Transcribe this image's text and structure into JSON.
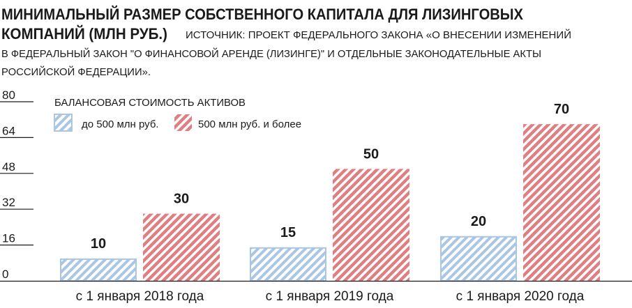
{
  "header": {
    "title_line1": "МИНИМАЛЬНЫЙ РАЗМЕР СОБСТВЕННОГО КАПИТАЛА ДЛЯ ЛИЗИНГОВЫХ",
    "title_line2": "КОМПАНИЙ (МЛН РУБ.)",
    "source_line1": "ИСТОЧНИК: ПРОЕКТ ФЕДЕРАЛЬНОГО ЗАКОНА «О ВНЕСЕНИИ ИЗМЕНЕНИЙ",
    "source_line2": "В ФЕДЕРАЛЬНЫЙ ЗАКОН \"О ФИНАНСОВОЙ АРЕНДЕ (ЛИЗИНГЕ)\" И ОТДЕЛЬНЫЕ ЗАКОНОДАТЕЛЬНЫЕ АКТЫ",
    "source_line3": "РОССИЙСКОЙ ФЕДЕРАЦИИ»."
  },
  "chart_data": {
    "type": "bar",
    "title": "МИНИМАЛЬНЫЙ РАЗМЕР СОБСТВЕННОГО КАПИТАЛА ДЛЯ ЛИЗИНГОВЫХ КОМПАНИЙ (МЛН РУБ.)",
    "legend_title": "БАЛАНСОВАЯ СТОИМОСТЬ АКТИВОВ",
    "legend_placement": "top-left",
    "categories": [
      "с 1 января 2018 года",
      "с 1 января 2019 года",
      "с 1 января 2020 года"
    ],
    "series": [
      {
        "name": "до 500 млн руб.",
        "values": [
          10,
          15,
          20
        ],
        "color": "#a9c6e3",
        "pattern": "hatched"
      },
      {
        "name": "500 млн руб. и более",
        "values": [
          30,
          50,
          70
        ],
        "color": "#e07f82",
        "pattern": "hatched"
      }
    ],
    "yticks": [
      0,
      16,
      32,
      48,
      64,
      80
    ],
    "ylim": [
      0,
      80
    ],
    "grid": false,
    "data_labels": true
  }
}
